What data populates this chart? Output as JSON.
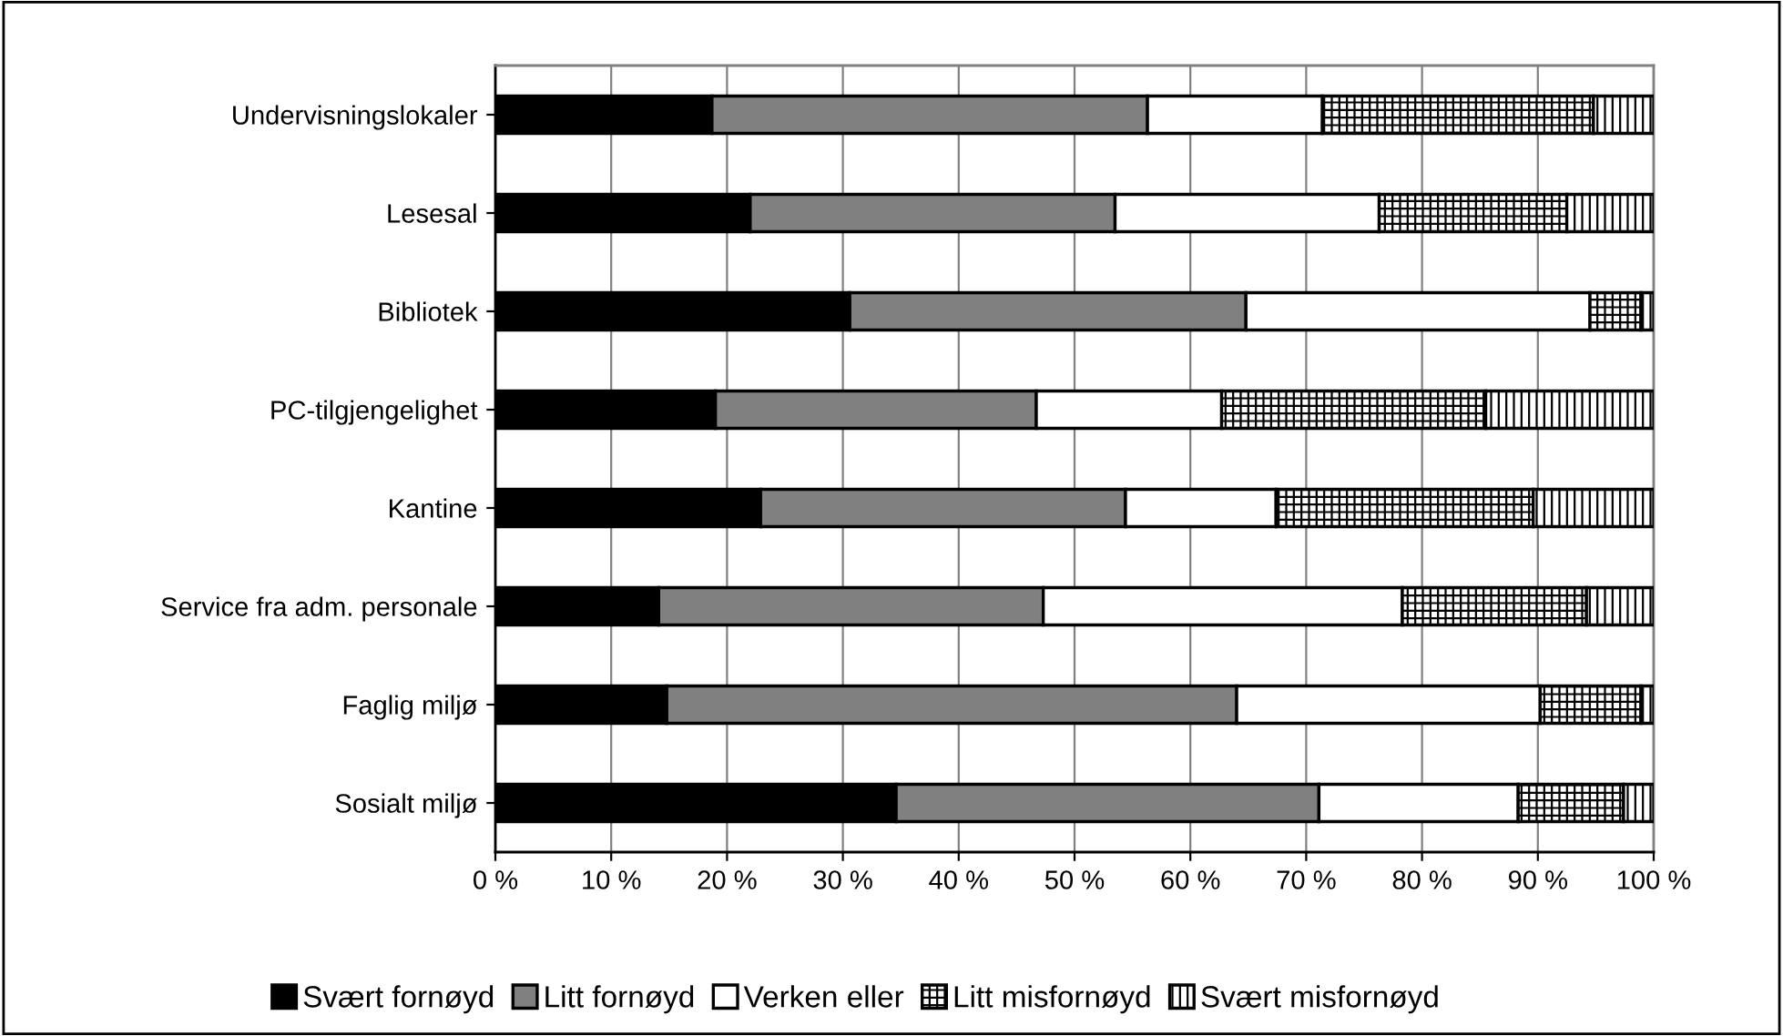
{
  "chart_data": {
    "type": "bar",
    "orientation": "horizontal",
    "stacked": true,
    "categories": [
      "Undervisningslokaler",
      "Lesesal",
      "Bibliotek",
      "PC-tilgjengelighet",
      "Kantine",
      "Service fra adm. personale",
      "Faglig miljø",
      "Sosialt miljø"
    ],
    "series": [
      {
        "name": "Svært fornøyd",
        "color": "#000000",
        "values": [
          18.7,
          22.0,
          30.6,
          19.0,
          22.9,
          14.1,
          14.8,
          34.6
        ]
      },
      {
        "name": "Litt fornøyd",
        "color": "#808080",
        "values": [
          37.6,
          31.5,
          34.2,
          27.7,
          31.5,
          33.2,
          49.2,
          36.5
        ]
      },
      {
        "name": "Verken eller",
        "color": "#ffffff",
        "values": [
          15.1,
          22.8,
          29.7,
          16.0,
          13.0,
          31.0,
          26.2,
          17.2
        ]
      },
      {
        "name": "Litt misfornøyd",
        "color": "#000000",
        "values": [
          23.4,
          16.2,
          4.4,
          22.8,
          22.2,
          15.9,
          8.7,
          9.1
        ]
      },
      {
        "name": "Svært misfornøyd",
        "color": "#000000",
        "values": [
          5.2,
          7.5,
          1.1,
          14.5,
          10.4,
          5.8,
          1.1,
          2.6
        ]
      }
    ],
    "xlim": [
      0,
      100
    ],
    "xticks": [
      {
        "value": 0,
        "label": "0 %"
      },
      {
        "value": 10,
        "label": "10 %"
      },
      {
        "value": 20,
        "label": "20 %"
      },
      {
        "value": 30,
        "label": "30 %"
      },
      {
        "value": 40,
        "label": "40 %"
      },
      {
        "value": 50,
        "label": "50 %"
      },
      {
        "value": 60,
        "label": "60 %"
      },
      {
        "value": 70,
        "label": "70 %"
      },
      {
        "value": 80,
        "label": "80 %"
      },
      {
        "value": 90,
        "label": "90 %"
      },
      {
        "value": 100,
        "label": "100 %"
      }
    ],
    "grid": "x",
    "legend": "bottom"
  }
}
